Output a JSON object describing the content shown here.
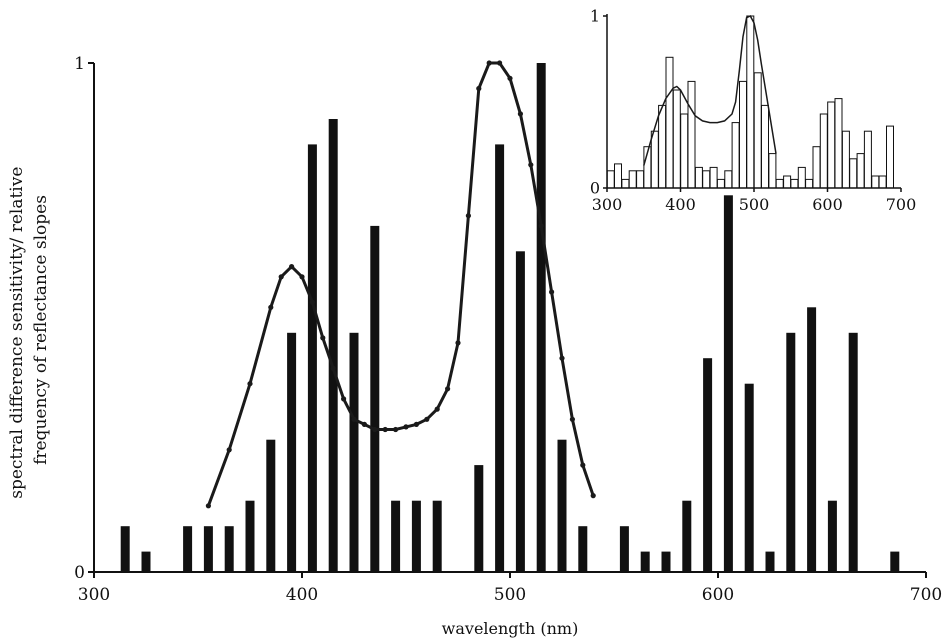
{
  "chart_data": [
    {
      "type": "bar",
      "xlabel": "wavelength (nm)",
      "ylabel_lines": [
        "spectral difference sensitivity/ relative",
        "frequency of reflectance slopes"
      ],
      "xlim": [
        300,
        700
      ],
      "ylim": [
        0,
        1
      ],
      "xticks": [
        300,
        400,
        500,
        600,
        700
      ],
      "yticks": [
        0,
        1
      ],
      "grid": false,
      "legend": "none",
      "bar_color": "#111111",
      "bars": {
        "x": [
          315,
          325,
          345,
          355,
          365,
          375,
          385,
          395,
          405,
          415,
          425,
          435,
          445,
          455,
          465,
          485,
          495,
          505,
          515,
          525,
          535,
          555,
          565,
          575,
          585,
          595,
          605,
          615,
          625,
          635,
          645,
          655,
          665,
          685
        ],
        "values": [
          0.09,
          0.04,
          0.09,
          0.09,
          0.09,
          0.14,
          0.26,
          0.47,
          0.84,
          0.89,
          0.47,
          0.68,
          0.14,
          0.14,
          0.14,
          0.21,
          0.84,
          0.63,
          1.0,
          0.26,
          0.09,
          0.09,
          0.04,
          0.04,
          0.14,
          0.42,
          0.74,
          0.37,
          0.04,
          0.47,
          0.52,
          0.14,
          0.47,
          0.04
        ]
      },
      "curve": {
        "x": [
          355,
          365,
          375,
          385,
          390,
          395,
          400,
          405,
          410,
          415,
          420,
          425,
          430,
          435,
          440,
          445,
          450,
          455,
          460,
          465,
          470,
          475,
          480,
          485,
          490,
          495,
          500,
          505,
          510,
          515,
          520,
          525,
          530,
          535,
          540
        ],
        "y": [
          0.13,
          0.24,
          0.37,
          0.52,
          0.58,
          0.6,
          0.58,
          0.53,
          0.46,
          0.4,
          0.34,
          0.3,
          0.29,
          0.28,
          0.28,
          0.28,
          0.285,
          0.29,
          0.3,
          0.32,
          0.36,
          0.45,
          0.7,
          0.95,
          1.0,
          1.0,
          0.97,
          0.9,
          0.8,
          0.68,
          0.55,
          0.42,
          0.3,
          0.21,
          0.15
        ]
      }
    },
    {
      "type": "bar",
      "role": "inset",
      "xlim": [
        300,
        700
      ],
      "ylim": [
        0,
        1
      ],
      "xticks": [
        300,
        400,
        500,
        600,
        700
      ],
      "yticks": [
        0,
        1
      ],
      "bar_color": "#ffffff",
      "bars": {
        "x": [
          305,
          315,
          325,
          335,
          345,
          355,
          365,
          375,
          385,
          395,
          405,
          415,
          425,
          435,
          445,
          455,
          465,
          475,
          485,
          495,
          505,
          515,
          525,
          535,
          545,
          555,
          565,
          575,
          585,
          595,
          605,
          615,
          625,
          635,
          645,
          655,
          665,
          675,
          685,
          695
        ],
        "values": [
          0.1,
          0.14,
          0.05,
          0.1,
          0.1,
          0.24,
          0.33,
          0.48,
          0.76,
          0.57,
          0.43,
          0.62,
          0.12,
          0.1,
          0.12,
          0.05,
          0.1,
          0.38,
          0.62,
          1.0,
          0.67,
          0.48,
          0.2,
          0.05,
          0.07,
          0.05,
          0.12,
          0.05,
          0.24,
          0.43,
          0.5,
          0.52,
          0.33,
          0.17,
          0.2,
          0.33,
          0.07,
          0.07,
          0.36,
          0.0
        ]
      },
      "curve": {
        "x": [
          350,
          360,
          370,
          380,
          390,
          395,
          400,
          410,
          420,
          430,
          440,
          450,
          460,
          470,
          475,
          480,
          485,
          490,
          495,
          500,
          505,
          510,
          520,
          530
        ],
        "y": [
          0.13,
          0.28,
          0.42,
          0.52,
          0.58,
          0.59,
          0.57,
          0.49,
          0.42,
          0.39,
          0.38,
          0.38,
          0.39,
          0.43,
          0.5,
          0.68,
          0.88,
          0.99,
          1.0,
          0.96,
          0.86,
          0.72,
          0.46,
          0.2
        ]
      }
    }
  ]
}
